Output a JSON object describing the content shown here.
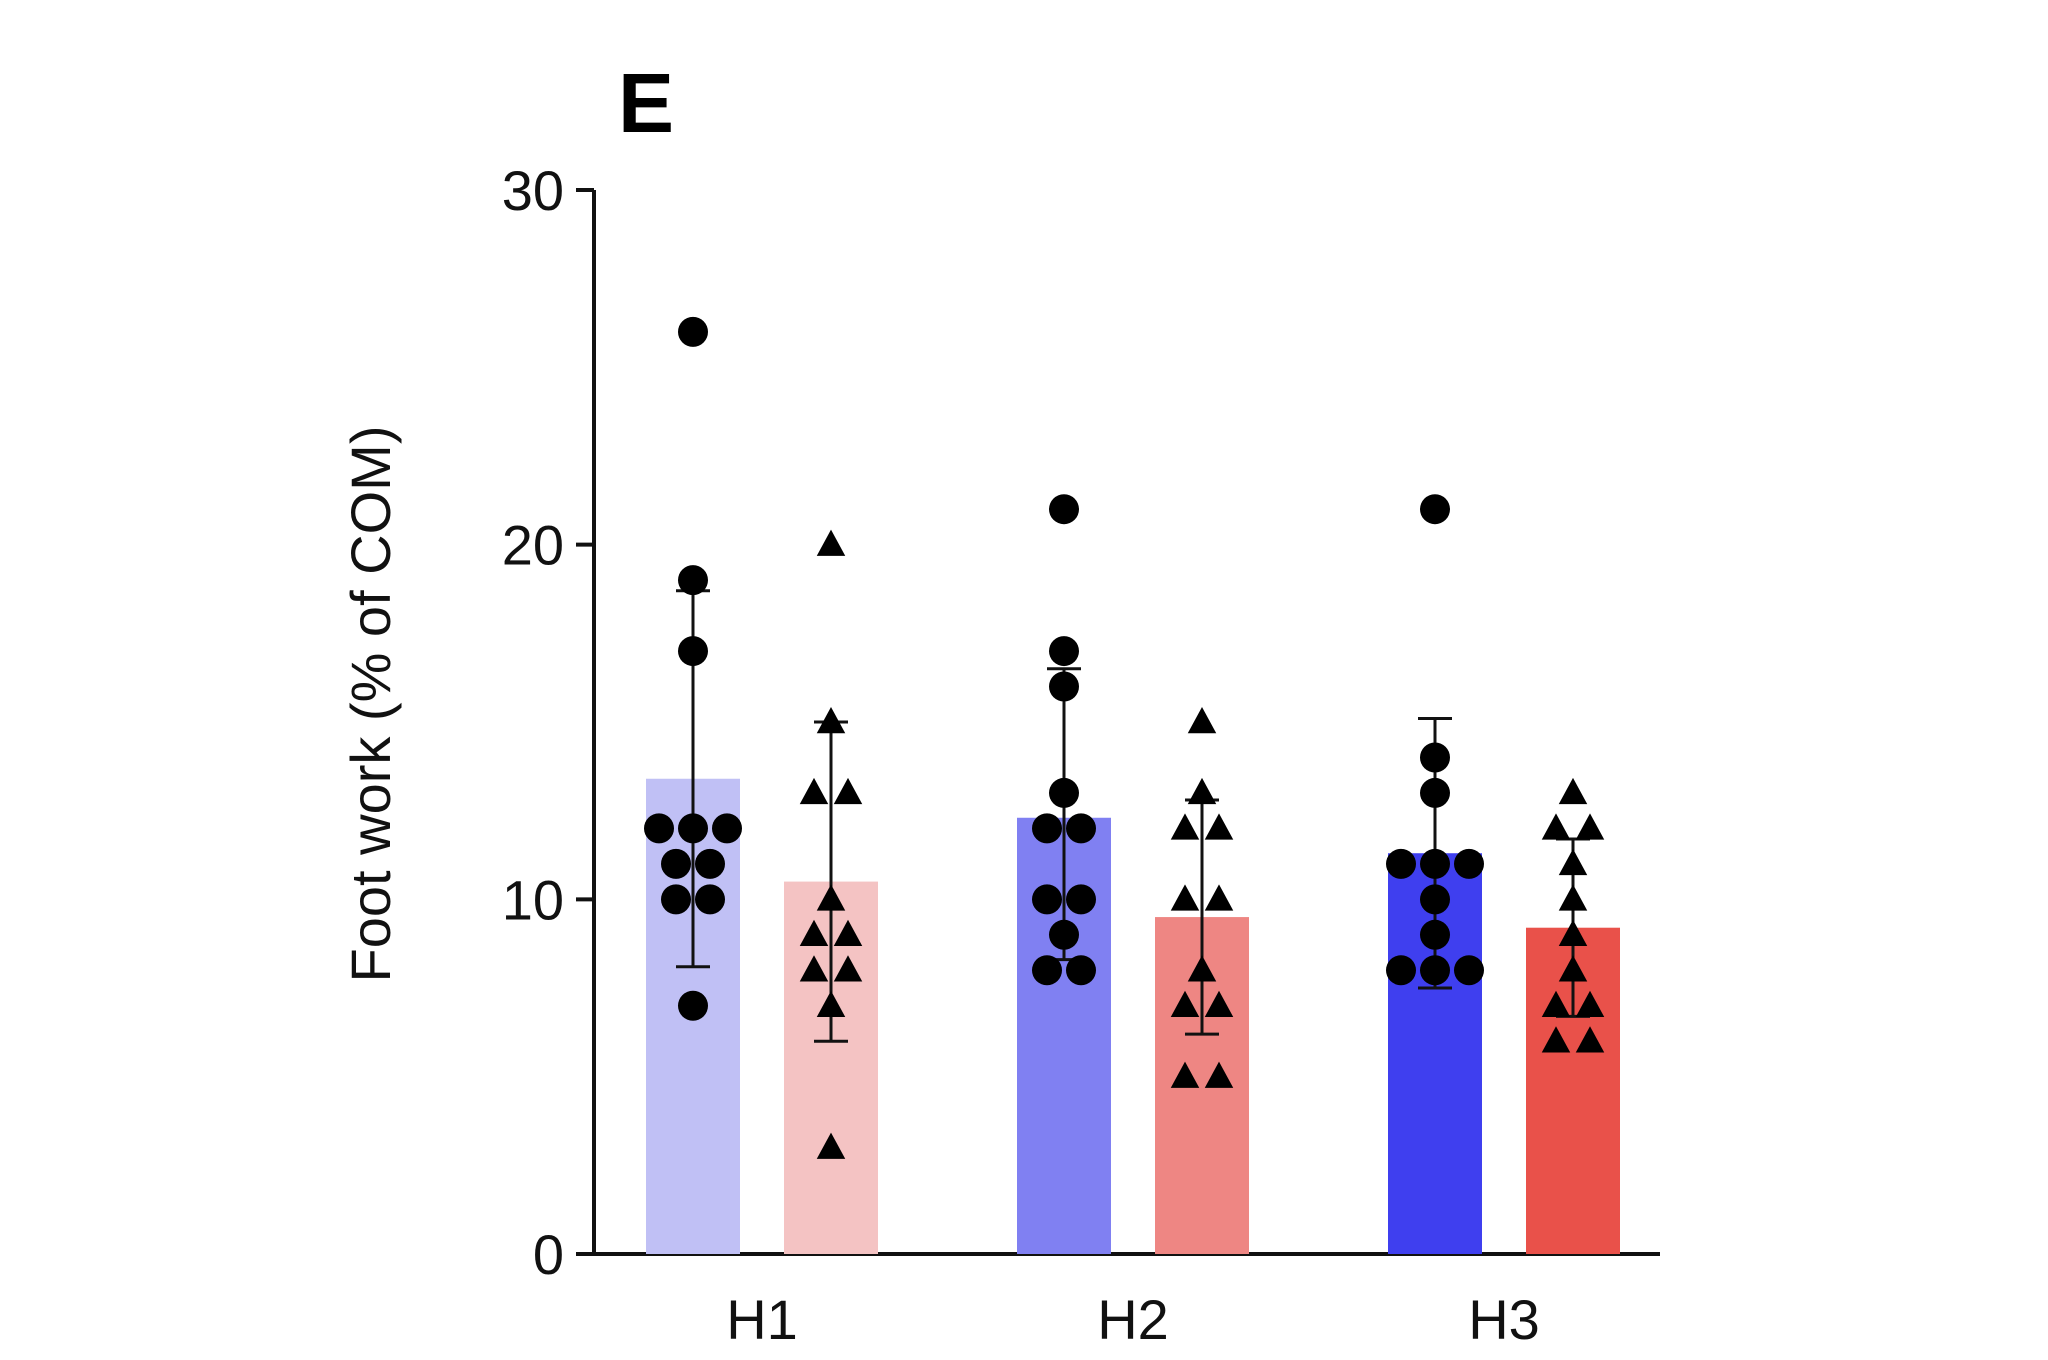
{
  "panel_label": "E",
  "chart_data": {
    "type": "bar",
    "title": "",
    "xlabel": "",
    "ylabel": "Foot work (% of COM)",
    "ylim": [
      0,
      30
    ],
    "yticks": [
      0,
      10,
      20,
      30
    ],
    "categories": [
      "H1",
      "H2",
      "H3"
    ],
    "grid": false,
    "legend": "none",
    "groups": [
      {
        "category": "H1",
        "bars": [
          {
            "marker": "circle",
            "fill": "#c0c0f5",
            "mean": 13.4,
            "sd_low": 8.1,
            "sd_high": 18.7,
            "points": [
              26,
              19,
              17,
              12,
              12,
              12,
              11,
              11,
              10,
              10,
              7
            ]
          },
          {
            "marker": "triangle",
            "fill": "#f4c3c3",
            "mean": 10.5,
            "sd_low": 6.0,
            "sd_high": 15.0,
            "points": [
              20,
              15,
              13,
              13,
              10,
              9,
              9,
              8,
              8,
              7,
              3
            ]
          }
        ]
      },
      {
        "category": "H2",
        "bars": [
          {
            "marker": "circle",
            "fill": "#8080f2",
            "mean": 12.3,
            "sd_low": 8.3,
            "sd_high": 16.5,
            "points": [
              21,
              17,
              16,
              13,
              12,
              12,
              10,
              10,
              9,
              8,
              8
            ]
          },
          {
            "marker": "triangle",
            "fill": "#ee8683",
            "mean": 9.5,
            "sd_low": 6.2,
            "sd_high": 12.8,
            "points": [
              15,
              13,
              12,
              12,
              10,
              10,
              8,
              7,
              7,
              5,
              5
            ]
          }
        ]
      },
      {
        "category": "H3",
        "bars": [
          {
            "marker": "circle",
            "fill": "#3f3fef",
            "mean": 11.3,
            "sd_low": 7.5,
            "sd_high": 15.1,
            "points": [
              21,
              14,
              13,
              11,
              11,
              11,
              10,
              9,
              8,
              8,
              8
            ]
          },
          {
            "marker": "triangle",
            "fill": "#e9514a",
            "mean": 9.2,
            "sd_low": 6.7,
            "sd_high": 11.7,
            "points": [
              13,
              12,
              12,
              11,
              10,
              9,
              8,
              7,
              7,
              6,
              6
            ]
          }
        ]
      }
    ]
  }
}
